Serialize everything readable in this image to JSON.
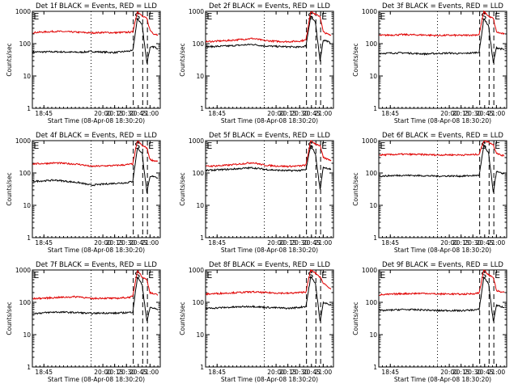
{
  "colors": {
    "events": "#000000",
    "lld": "#e00000",
    "frame": "#000000",
    "background": "#ffffff"
  },
  "chart_data": {
    "type": "line",
    "grid": false,
    "yscale": "log",
    "ylim": [
      1,
      1000
    ],
    "xlim": [
      "18:30:20",
      "21:13:00"
    ],
    "x_unit": "time of day (HH:MM:SS)",
    "xticks": [
      "18:45",
      "20:00",
      "20:15",
      "20:30",
      "20:45",
      "21:00"
    ],
    "yticks": [
      "1",
      "10",
      "100",
      "1000"
    ],
    "ylabel": "Counts/sec",
    "xlabel": "Start Time (08-Apr-08 18:30:20)",
    "markers": {
      "start": "S",
      "end": "E"
    },
    "vlines": [
      {
        "time": "19:45:00",
        "style": "dotted"
      },
      {
        "time": "20:38:40",
        "style": "dashed"
      },
      {
        "time": "20:50:40",
        "style": "dashed"
      },
      {
        "time": "20:56:40",
        "style": "dashed"
      }
    ],
    "marker_times": {
      "first_E": "18:30:40",
      "S": "20:39:20",
      "E": "20:56:40"
    },
    "panels": [
      {
        "title": "Det 1f BLACK = Events, RED = LLD",
        "series": [
          {
            "key": "events",
            "x": [
              "18:31",
              "19:00",
              "19:30",
              "19:45",
              "20:00",
              "20:15",
              "20:30",
              "20:38",
              "20:44",
              "20:50",
              "20:56",
              "21:00",
              "21:05",
              "21:10"
            ],
            "values": [
              55,
              56,
              54,
              57,
              55,
              53,
              58,
              60,
              600,
              380,
              25,
              75,
              80,
              70
            ]
          },
          {
            "key": "lld",
            "x": [
              "18:31",
              "19:00",
              "19:30",
              "19:45",
              "20:00",
              "20:15",
              "20:30",
              "20:38",
              "20:44",
              "20:50",
              "20:56",
              "21:00",
              "21:05",
              "21:10"
            ],
            "values": [
              220,
              240,
              225,
              215,
              222,
              218,
              225,
              230,
              1000,
              700,
              600,
              260,
              200,
              190
            ]
          }
        ]
      },
      {
        "title": "Det 2f BLACK = Events, RED = LLD",
        "series": [
          {
            "key": "events",
            "x": [
              "18:31",
              "19:00",
              "19:30",
              "19:45",
              "20:00",
              "20:15",
              "20:30",
              "20:38",
              "20:44",
              "20:50",
              "20:56",
              "21:00",
              "21:05",
              "21:10"
            ],
            "values": [
              80,
              85,
              95,
              85,
              82,
              80,
              78,
              85,
              700,
              450,
              30,
              130,
              120,
              100
            ]
          },
          {
            "key": "lld",
            "x": [
              "18:31",
              "19:00",
              "19:30",
              "19:45",
              "20:00",
              "20:15",
              "20:30",
              "20:38",
              "20:44",
              "20:50",
              "20:56",
              "21:00",
              "21:05",
              "21:10"
            ],
            "values": [
              115,
              125,
              145,
              125,
              118,
              115,
              120,
              130,
              1000,
              800,
              700,
              230,
              200,
              180
            ]
          }
        ]
      },
      {
        "title": "Det 3f BLACK = Events, RED = LLD",
        "series": [
          {
            "key": "events",
            "x": [
              "18:31",
              "19:00",
              "19:30",
              "19:45",
              "20:00",
              "20:15",
              "20:30",
              "20:38",
              "20:44",
              "20:50",
              "20:56",
              "21:00",
              "21:05",
              "21:10"
            ],
            "values": [
              50,
              52,
              48,
              50,
              51,
              49,
              52,
              55,
              600,
              350,
              25,
              75,
              70,
              65
            ]
          },
          {
            "key": "lld",
            "x": [
              "18:31",
              "19:00",
              "19:30",
              "19:45",
              "20:00",
              "20:15",
              "20:30",
              "20:38",
              "20:44",
              "20:50",
              "20:56",
              "21:00",
              "21:05",
              "21:10"
            ],
            "values": [
              180,
              190,
              185,
              178,
              182,
              180,
              185,
              190,
              1000,
              700,
              600,
              230,
              210,
              200
            ]
          }
        ]
      },
      {
        "title": "Det 4f BLACK = Events, RED = LLD",
        "series": [
          {
            "key": "events",
            "x": [
              "18:31",
              "19:00",
              "19:30",
              "19:45",
              "20:00",
              "20:15",
              "20:30",
              "20:38",
              "20:44",
              "20:50",
              "20:56",
              "21:00",
              "21:05",
              "21:10"
            ],
            "values": [
              55,
              60,
              50,
              42,
              45,
              48,
              50,
              55,
              600,
              400,
              25,
              75,
              80,
              70
            ]
          },
          {
            "key": "lld",
            "x": [
              "18:31",
              "19:00",
              "19:30",
              "19:45",
              "20:00",
              "20:15",
              "20:30",
              "20:38",
              "20:44",
              "20:50",
              "20:56",
              "21:00",
              "21:05",
              "21:10"
            ],
            "values": [
              190,
              205,
              185,
              160,
              165,
              170,
              180,
              190,
              1000,
              700,
              600,
              260,
              240,
              230
            ]
          }
        ]
      },
      {
        "title": "Det 5f BLACK = Events, RED = LLD",
        "series": [
          {
            "key": "events",
            "x": [
              "18:31",
              "19:00",
              "19:30",
              "19:45",
              "20:00",
              "20:15",
              "20:30",
              "20:38",
              "20:44",
              "20:50",
              "20:56",
              "21:00",
              "21:05",
              "21:10"
            ],
            "values": [
              120,
              130,
              145,
              130,
              122,
              118,
              120,
              125,
              700,
              400,
              30,
              150,
              140,
              130
            ]
          },
          {
            "key": "lld",
            "x": [
              "18:31",
              "19:00",
              "19:30",
              "19:45",
              "20:00",
              "20:15",
              "20:30",
              "20:38",
              "20:44",
              "20:50",
              "20:56",
              "21:00",
              "21:05",
              "21:10"
            ],
            "values": [
              160,
              175,
              210,
              175,
              165,
              160,
              165,
              175,
              1000,
              800,
              700,
              300,
              270,
              250
            ]
          }
        ]
      },
      {
        "title": "Det 6f BLACK = Events, RED = LLD",
        "series": [
          {
            "key": "events",
            "x": [
              "18:31",
              "19:00",
              "19:30",
              "19:45",
              "20:00",
              "20:15",
              "20:30",
              "20:38",
              "20:44",
              "20:50",
              "20:56",
              "21:00",
              "21:05",
              "21:10"
            ],
            "values": [
              80,
              85,
              82,
              80,
              81,
              80,
              83,
              85,
              700,
              400,
              25,
              110,
              100,
              95
            ]
          },
          {
            "key": "lld",
            "x": [
              "18:31",
              "19:00",
              "19:30",
              "19:45",
              "20:00",
              "20:15",
              "20:30",
              "20:38",
              "20:44",
              "20:50",
              "20:56",
              "21:00",
              "21:05",
              "21:10"
            ],
            "values": [
              360,
              380,
              370,
              360,
              365,
              362,
              368,
              380,
              1000,
              900,
              750,
              420,
              360,
              340
            ]
          }
        ]
      },
      {
        "title": "Det 7f BLACK = Events, RED = LLD",
        "series": [
          {
            "key": "events",
            "x": [
              "18:31",
              "19:00",
              "19:30",
              "19:45",
              "20:00",
              "20:15",
              "20:30",
              "20:38",
              "20:44",
              "20:50",
              "20:56",
              "21:00",
              "21:05",
              "21:10"
            ],
            "values": [
              45,
              50,
              48,
              45,
              47,
              46,
              48,
              50,
              600,
              350,
              25,
              70,
              65,
              60
            ]
          },
          {
            "key": "lld",
            "x": [
              "18:31",
              "19:00",
              "19:30",
              "19:45",
              "20:00",
              "20:15",
              "20:30",
              "20:38",
              "20:44",
              "20:50",
              "20:56",
              "21:00",
              "21:05",
              "21:10"
            ],
            "values": [
              130,
              140,
              150,
              130,
              135,
              132,
              140,
              150,
              1000,
              600,
              500,
              200,
              180,
              170
            ]
          }
        ]
      },
      {
        "title": "Det 8f BLACK = Events, RED = LLD",
        "series": [
          {
            "key": "events",
            "x": [
              "18:31",
              "19:00",
              "19:30",
              "19:45",
              "20:00",
              "20:15",
              "20:30",
              "20:38",
              "20:44",
              "20:50",
              "20:56",
              "21:00",
              "21:05",
              "21:10"
            ],
            "values": [
              65,
              70,
              75,
              70,
              68,
              65,
              70,
              75,
              600,
              400,
              25,
              100,
              90,
              80
            ]
          },
          {
            "key": "lld",
            "x": [
              "18:31",
              "19:00",
              "19:30",
              "19:45",
              "20:00",
              "20:15",
              "20:30",
              "20:38",
              "20:44",
              "20:50",
              "20:56",
              "21:00",
              "21:05",
              "21:10"
            ],
            "values": [
              180,
              195,
              210,
              200,
              195,
              190,
              200,
              210,
              1000,
              800,
              600,
              400,
              320,
              260
            ]
          }
        ]
      },
      {
        "title": "Det 9f BLACK = Events, RED = LLD",
        "series": [
          {
            "key": "events",
            "x": [
              "18:31",
              "19:00",
              "19:30",
              "19:45",
              "20:00",
              "20:15",
              "20:30",
              "20:38",
              "20:44",
              "20:50",
              "20:56",
              "21:00",
              "21:05",
              "21:10"
            ],
            "values": [
              55,
              60,
              58,
              55,
              56,
              55,
              58,
              60,
              600,
              380,
              25,
              80,
              75,
              70
            ]
          },
          {
            "key": "lld",
            "x": [
              "18:31",
              "19:00",
              "19:30",
              "19:45",
              "20:00",
              "20:15",
              "20:30",
              "20:38",
              "20:44",
              "20:50",
              "20:56",
              "21:00",
              "21:05",
              "21:10"
            ],
            "values": [
              170,
              185,
              190,
              180,
              182,
              178,
              185,
              195,
              1000,
              700,
              600,
              230,
              210,
              200
            ]
          }
        ]
      }
    ]
  }
}
